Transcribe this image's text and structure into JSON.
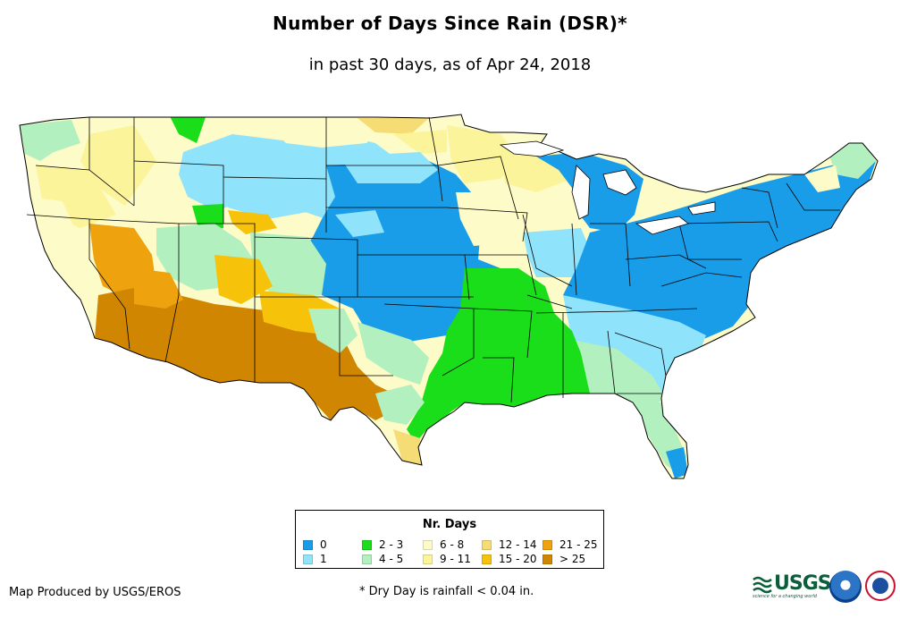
{
  "title": "Number of Days Since Rain (DSR)*",
  "subtitle": "in past 30 days, as of Apr 24, 2018",
  "legend": {
    "title": "Nr. Days",
    "items": [
      {
        "label": "0",
        "color": "#1a9de8"
      },
      {
        "label": "1",
        "color": "#8fe3fa"
      },
      {
        "label": "2 - 3",
        "color": "#19de19"
      },
      {
        "label": "4 - 5",
        "color": "#b2f0bf"
      },
      {
        "label": "6 - 8",
        "color": "#fdfbc8"
      },
      {
        "label": "9 - 11",
        "color": "#fbf49b"
      },
      {
        "label": "12 - 14",
        "color": "#f6dc74"
      },
      {
        "label": "15 - 20",
        "color": "#f6c20a"
      },
      {
        "label": "21 - 25",
        "color": "#eda20e"
      },
      {
        "label": "> 25",
        "color": "#d08600"
      }
    ]
  },
  "credit": "Map Produced by USGS/EROS",
  "footnote": "* Dry Day is rainfall < 0.04 in.",
  "logos": {
    "usgs": "USGS",
    "usgs_tagline": "science for a changing world",
    "noaa": "noaa-logo",
    "nws": "nws-logo"
  }
}
